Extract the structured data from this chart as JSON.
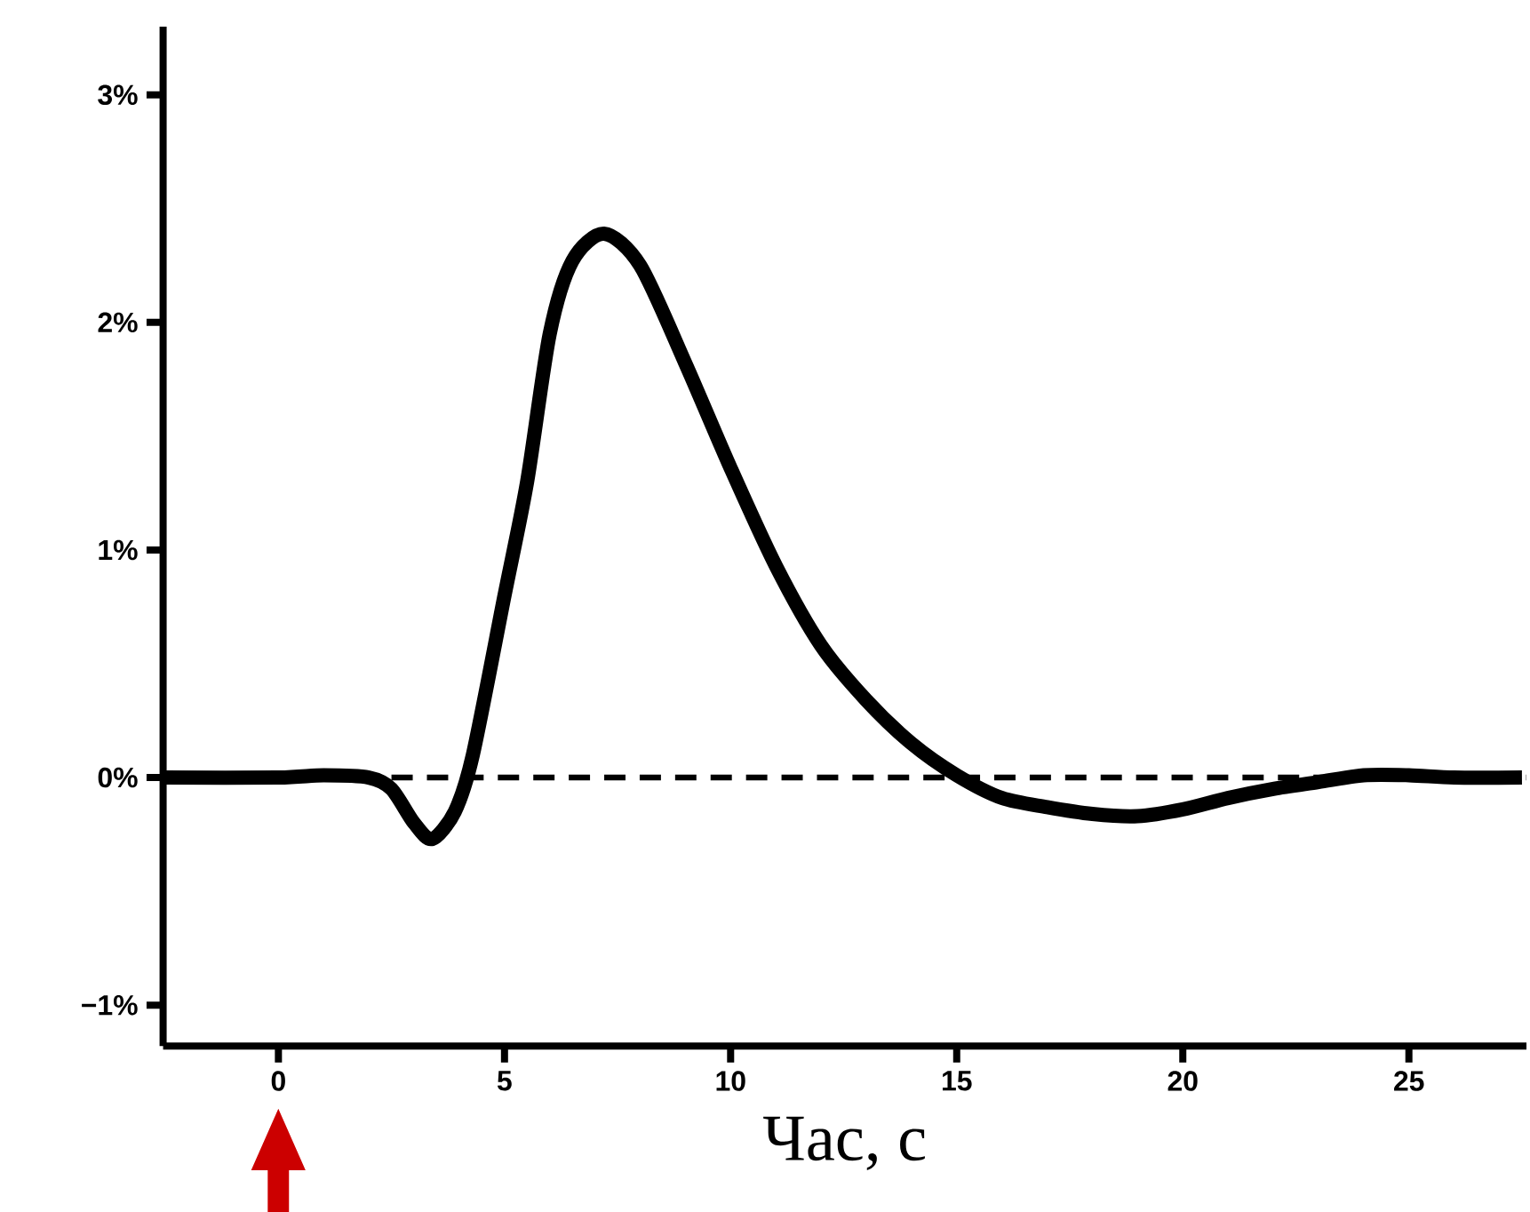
{
  "chart_data": {
    "type": "line",
    "xlabel": "Час, с",
    "series": [
      {
        "color": "#000000",
        "x": [
          -2.5,
          0,
          1,
          2,
          2.5,
          3,
          3.4,
          3.9,
          4.3,
          5,
          5.5,
          6,
          6.5,
          7.2,
          8,
          9,
          10,
          11,
          12,
          13,
          14,
          15,
          16,
          17,
          18,
          19,
          20,
          21,
          22,
          23,
          24,
          25,
          26,
          27.5
        ],
        "values": [
          0,
          0,
          0.01,
          0,
          -0.05,
          -0.2,
          -0.27,
          -0.15,
          0.1,
          0.8,
          1.3,
          1.95,
          2.27,
          2.39,
          2.25,
          1.82,
          1.36,
          0.93,
          0.58,
          0.34,
          0.15,
          0.01,
          -0.09,
          -0.13,
          -0.16,
          -0.17,
          -0.14,
          -0.09,
          -0.05,
          -0.02,
          0.01,
          0.01,
          0,
          0
        ]
      }
    ],
    "xlim": [
      -2.55,
      27.6
    ],
    "ylim": [
      -1.18,
      3.3
    ],
    "xticks": [
      0,
      5,
      10,
      15,
      20,
      25
    ],
    "yticks": [
      {
        "value": -1,
        "label": "−1%"
      },
      {
        "value": 0,
        "label": "0%"
      },
      {
        "value": 1,
        "label": "1%"
      },
      {
        "value": 2,
        "label": "2%"
      },
      {
        "value": 3,
        "label": "3%"
      }
    ],
    "ref_lines": [
      {
        "axis": "y",
        "value": 0,
        "color": "#000000",
        "line_style": "dashed"
      }
    ],
    "grid": false,
    "marker": "none",
    "line_style": "solid"
  }
}
